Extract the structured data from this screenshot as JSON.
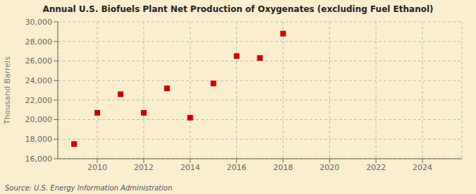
{
  "chart_data": {
    "type": "scatter",
    "title": "Annual U.S. Biofuels Plant Net Production of Oxygenates (excluding Fuel Ethanol)",
    "ylabel": "Thousand Barrels",
    "annotation": "Source: U.S. Energy Information Administration",
    "x": [
      2009,
      2010,
      2011,
      2012,
      2013,
      2014,
      2015,
      2016,
      2017,
      2018
    ],
    "values": [
      17500,
      20700,
      22600,
      20700,
      23200,
      20200,
      23700,
      26500,
      26300,
      28800
    ],
    "xlim": [
      2008.3,
      2025.7
    ],
    "ylim": [
      16000,
      30000
    ],
    "xticks": [
      2010,
      2012,
      2014,
      2016,
      2018,
      2020,
      2022,
      2024
    ],
    "yticks": [
      {
        "value": 16000,
        "label": "16,000"
      },
      {
        "value": 18000,
        "label": "18,000"
      },
      {
        "value": 20000,
        "label": "20,000"
      },
      {
        "value": 22000,
        "label": "22,000"
      },
      {
        "value": 24000,
        "label": "24,000"
      },
      {
        "value": 26000,
        "label": "26,000"
      },
      {
        "value": 28000,
        "label": "28,000"
      },
      {
        "value": 30000,
        "label": "30,000"
      }
    ],
    "color": "#cc0000",
    "marker": "square",
    "grid": true
  }
}
